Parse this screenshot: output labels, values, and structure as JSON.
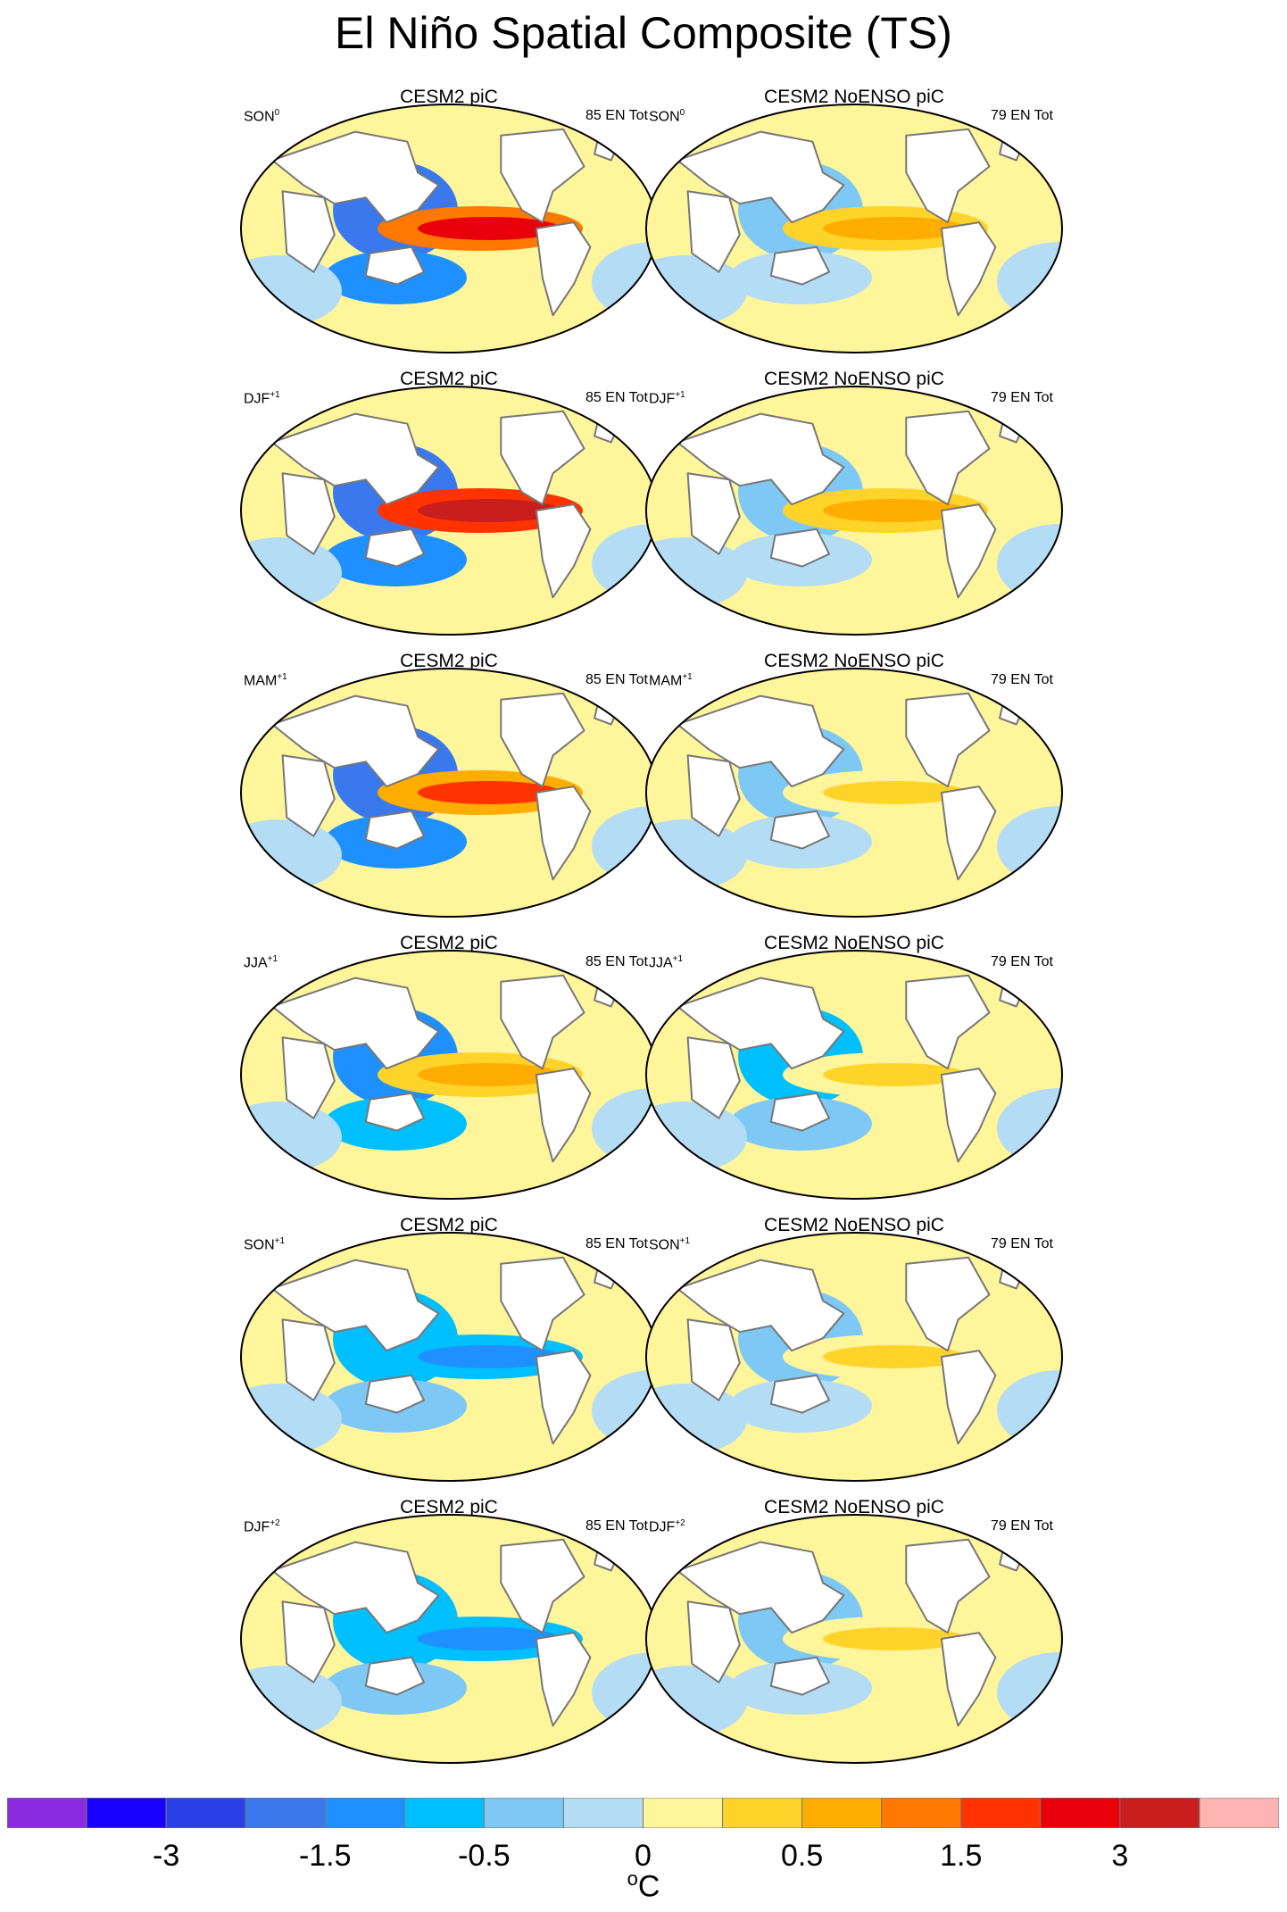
{
  "chart_data": {
    "type": "heatmap",
    "title": "El Niño Spatial Composite (TS)",
    "projection": "Robinson (global ellipse)",
    "columns": [
      {
        "name": "CESM2 piC",
        "count_label": "85 EN Tot"
      },
      {
        "name": "CESM2 NoENSO piC",
        "count_label": "79 EN Tot"
      }
    ],
    "rows": [
      {
        "season": "SON",
        "sup": "0",
        "equatorial_pacific_anomaly": [
          3.0,
          0.8
        ],
        "w_pacific_anomaly": [
          -1.5,
          -0.3
        ]
      },
      {
        "season": "DJF",
        "sup": "+1",
        "equatorial_pacific_anomaly": [
          3.2,
          0.8
        ],
        "w_pacific_anomaly": [
          -1.8,
          -0.3
        ]
      },
      {
        "season": "MAM",
        "sup": "+1",
        "equatorial_pacific_anomaly": [
          2.0,
          0.5
        ],
        "w_pacific_anomaly": [
          -1.5,
          -0.3
        ]
      },
      {
        "season": "JJA",
        "sup": "+1",
        "equatorial_pacific_anomaly": [
          0.8,
          0.5
        ],
        "w_pacific_anomaly": [
          -1.0,
          -0.5
        ]
      },
      {
        "season": "SON",
        "sup": "+1",
        "equatorial_pacific_anomaly": [
          -1.0,
          0.4
        ],
        "w_pacific_anomaly": [
          -0.5,
          -0.3
        ]
      },
      {
        "season": "DJF",
        "sup": "+2",
        "equatorial_pacific_anomaly": [
          -1.2,
          0.4
        ],
        "w_pacific_anomaly": [
          -0.5,
          -0.3
        ]
      }
    ],
    "colorbar": {
      "colors": [
        "#8a2be2",
        "#1a00ff",
        "#2b3fe8",
        "#3a78ee",
        "#1e90ff",
        "#00bfff",
        "#7ec8f5",
        "#b4dcf5",
        "#fff59a",
        "#ffd42a",
        "#ffad00",
        "#ff7800",
        "#ff3300",
        "#e8000b",
        "#c81e1e",
        "#ffb4b4"
      ],
      "tick_labels": [
        "-3",
        "-1.5",
        "-0.5",
        "0",
        "0.5",
        "1.5",
        "3"
      ],
      "tick_boundary_index": [
        2,
        4,
        6,
        8,
        10,
        12,
        14
      ],
      "unit_base": "o",
      "unit": "C"
    }
  }
}
